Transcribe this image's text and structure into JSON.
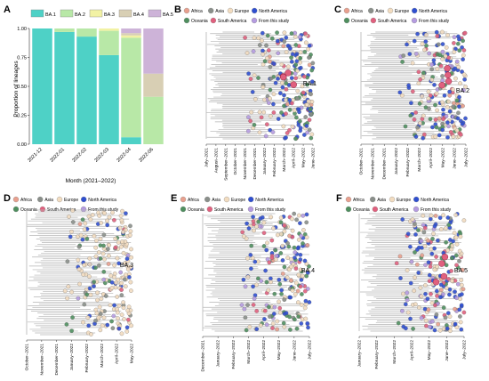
{
  "panel_a": {
    "letter": "A",
    "chart_data": {
      "type": "bar",
      "stacked": true,
      "categories": [
        "2021-12",
        "2022-01",
        "2022-02",
        "2022-03",
        "2022-04",
        "2022-06"
      ],
      "series": [
        {
          "name": "BA.1",
          "color": "#4ed1c6",
          "values": [
            1.0,
            0.97,
            0.93,
            0.77,
            0.06,
            0.0
          ]
        },
        {
          "name": "BA.2",
          "color": "#b8e8a7",
          "values": [
            0.0,
            0.03,
            0.07,
            0.21,
            0.86,
            0.41
          ]
        },
        {
          "name": "BA.3",
          "color": "#f2f2a4",
          "values": [
            0.0,
            0.0,
            0.0,
            0.02,
            0.02,
            0.0
          ]
        },
        {
          "name": "BA.4",
          "color": "#d8cfb4",
          "values": [
            0.0,
            0.0,
            0.0,
            0.0,
            0.02,
            0.2
          ]
        },
        {
          "name": "BA.5",
          "color": "#cdb3d8",
          "values": [
            0.0,
            0.0,
            0.0,
            0.0,
            0.04,
            0.39
          ]
        }
      ],
      "ylabel": "Proportion of lineages",
      "xlabel": "Month (2021–2022)",
      "ylim": [
        0,
        1
      ],
      "yticks": [
        "0.00",
        "0.25",
        "0.50",
        "0.75",
        "1.00"
      ],
      "legend_position": "top"
    }
  },
  "legend": {
    "regions": [
      {
        "label": "Africa",
        "color": "#e8a08e"
      },
      {
        "label": "Asia",
        "color": "#8a8f8a"
      },
      {
        "label": "Europe",
        "color": "#f2dcc0"
      },
      {
        "label": "North America",
        "color": "#2f4fd0"
      },
      {
        "label": "Oceania",
        "color": "#4f8f5f"
      },
      {
        "label": "South America",
        "color": "#e0607e"
      },
      {
        "label": "From this study",
        "color": "#b59be0"
      }
    ]
  },
  "trees": [
    {
      "letter": "B",
      "label": "BA.1",
      "dates": [
        "July–2021",
        "August–2021",
        "September–2021",
        "October–2021",
        "November–2021",
        "December–2021",
        "January–2022",
        "February–2022",
        "March–2022",
        "April–2022",
        "May–2022",
        "June–2022"
      ]
    },
    {
      "letter": "C",
      "label": "BA.2",
      "dates": [
        "October–2021",
        "November–2021",
        "December–2021",
        "January–2022",
        "February–2022",
        "March–2022",
        "April–2022",
        "May–2022",
        "June–2022",
        "July–2022"
      ]
    },
    {
      "letter": "D",
      "label": "BA.3",
      "dates": [
        "October–2021",
        "November–2021",
        "December–2021",
        "January–2022",
        "February–2022",
        "March–2022",
        "April–2022",
        "May–2022"
      ]
    },
    {
      "letter": "E",
      "label": "BA.4",
      "dates": [
        "December–2021",
        "January–2022",
        "February–2022",
        "March–2022",
        "April–2022",
        "May–2022",
        "June–2022",
        "July–2022"
      ]
    },
    {
      "letter": "F",
      "label": "BA.5",
      "dates": [
        "January–2022",
        "February–2022",
        "March–2022",
        "April–2022",
        "May–2022",
        "June–2022",
        "July–2022"
      ]
    }
  ]
}
